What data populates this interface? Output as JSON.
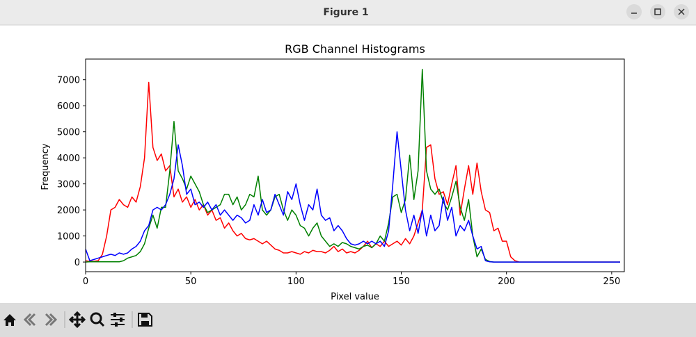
{
  "window": {
    "title": "Figure 1"
  },
  "chart_data": {
    "type": "line",
    "title": "RGB Channel Histograms",
    "x_label": "Pixel value",
    "y_label": "Frequency",
    "x": [
      0,
      2,
      4,
      6,
      8,
      10,
      12,
      14,
      16,
      18,
      20,
      22,
      24,
      26,
      28,
      30,
      32,
      34,
      36,
      38,
      40,
      42,
      44,
      46,
      48,
      50,
      52,
      54,
      56,
      58,
      60,
      62,
      64,
      66,
      68,
      70,
      72,
      74,
      76,
      78,
      80,
      82,
      84,
      86,
      88,
      90,
      92,
      94,
      96,
      98,
      100,
      102,
      104,
      106,
      108,
      110,
      112,
      114,
      116,
      118,
      120,
      122,
      124,
      126,
      128,
      130,
      132,
      134,
      136,
      138,
      140,
      142,
      144,
      146,
      148,
      150,
      152,
      154,
      156,
      158,
      160,
      162,
      164,
      166,
      168,
      170,
      172,
      174,
      176,
      178,
      180,
      182,
      184,
      186,
      188,
      190,
      192,
      194,
      196,
      198,
      200,
      202,
      204,
      206,
      208,
      210,
      212,
      214,
      216,
      218,
      220,
      222,
      224,
      226,
      228,
      230,
      232,
      234,
      236,
      238,
      240,
      242,
      244,
      246,
      248,
      250,
      252,
      254
    ],
    "series": [
      {
        "name": "Red",
        "color": "#ff0000",
        "values": [
          50,
          20,
          30,
          50,
          300,
          1000,
          2000,
          2100,
          2400,
          2200,
          2100,
          2500,
          2300,
          2900,
          4000,
          6900,
          4400,
          3900,
          4150,
          3500,
          3700,
          2500,
          2800,
          2300,
          2500,
          2100,
          2400,
          2000,
          2200,
          1800,
          2000,
          1600,
          1700,
          1300,
          1500,
          1200,
          1000,
          1100,
          900,
          850,
          900,
          800,
          700,
          800,
          650,
          500,
          450,
          350,
          350,
          400,
          350,
          300,
          400,
          350,
          450,
          400,
          400,
          350,
          450,
          600,
          400,
          500,
          350,
          400,
          350,
          450,
          600,
          800,
          550,
          700,
          600,
          800,
          600,
          700,
          800,
          650,
          900,
          700,
          1000,
          1500,
          2000,
          4400,
          4500,
          3200,
          2600,
          2700,
          2200,
          3000,
          3700,
          1800,
          2800,
          3700,
          2600,
          3800,
          2700,
          2000,
          1900,
          1200,
          1300,
          800,
          800,
          200,
          50,
          0,
          0,
          0,
          0,
          0,
          0,
          0,
          0,
          0,
          0,
          0,
          0,
          0,
          0,
          0,
          0,
          0,
          0,
          0,
          0,
          0,
          0,
          0,
          0,
          0
        ]
      },
      {
        "name": "Green",
        "color": "#008000",
        "values": [
          0,
          10,
          10,
          10,
          10,
          10,
          10,
          10,
          10,
          50,
          150,
          200,
          250,
          400,
          700,
          1300,
          1800,
          1300,
          2100,
          2100,
          3500,
          5400,
          3500,
          3200,
          2800,
          3300,
          3000,
          2700,
          2200,
          1900,
          2000,
          2100,
          2200,
          2600,
          2600,
          2200,
          2500,
          2000,
          2200,
          2600,
          2500,
          3300,
          2000,
          1800,
          2000,
          2500,
          2600,
          2000,
          1600,
          2000,
          1800,
          1400,
          1300,
          1000,
          1300,
          1500,
          1000,
          800,
          600,
          700,
          600,
          750,
          700,
          600,
          550,
          500,
          600,
          650,
          550,
          700,
          1000,
          800,
          1500,
          2500,
          2600,
          1900,
          2400,
          4100,
          2400,
          3500,
          7400,
          3500,
          2800,
          2600,
          2800,
          2300,
          2000,
          2500,
          3100,
          2100,
          1600,
          2400,
          1000,
          200,
          500,
          100,
          20,
          0,
          0,
          0,
          0,
          0,
          0,
          0,
          0,
          0,
          0,
          0,
          0,
          0,
          0,
          0,
          0,
          0,
          0,
          0,
          0,
          0,
          0,
          0,
          0,
          0,
          0,
          0,
          0,
          0,
          0,
          0
        ]
      },
      {
        "name": "Blue",
        "color": "#0000ff",
        "values": [
          500,
          50,
          100,
          150,
          200,
          250,
          300,
          250,
          350,
          300,
          350,
          500,
          600,
          800,
          1200,
          1400,
          2000,
          2100,
          2000,
          2200,
          2600,
          3200,
          4500,
          3700,
          2600,
          2800,
          2200,
          2300,
          2100,
          2300,
          2000,
          2200,
          1800,
          2000,
          1800,
          1600,
          1800,
          1700,
          1500,
          1600,
          2200,
          1800,
          2400,
          1900,
          2000,
          2600,
          2200,
          1800,
          2700,
          2400,
          3000,
          2200,
          1600,
          2200,
          2000,
          2800,
          1800,
          1600,
          1700,
          1200,
          1400,
          1200,
          900,
          700,
          650,
          700,
          800,
          700,
          800,
          700,
          800,
          600,
          1200,
          3000,
          5000,
          3500,
          2000,
          1200,
          1800,
          1100,
          2000,
          1000,
          1800,
          1200,
          1400,
          2500,
          1600,
          2100,
          1000,
          1400,
          1200,
          1600,
          1000,
          500,
          600,
          50,
          10,
          0,
          0,
          0,
          0,
          0,
          0,
          0,
          0,
          0,
          0,
          0,
          0,
          0,
          0,
          0,
          0,
          0,
          0,
          0,
          0,
          0,
          0,
          0,
          0,
          0,
          0,
          0,
          0,
          0,
          0,
          0
        ]
      }
    ],
    "xlim": [
      0,
      256
    ],
    "ylim": [
      -371,
      7793
    ],
    "xticks": [
      0,
      50,
      100,
      150,
      200,
      250
    ],
    "yticks": [
      0,
      1000,
      2000,
      3000,
      4000,
      5000,
      6000,
      7000
    ]
  }
}
